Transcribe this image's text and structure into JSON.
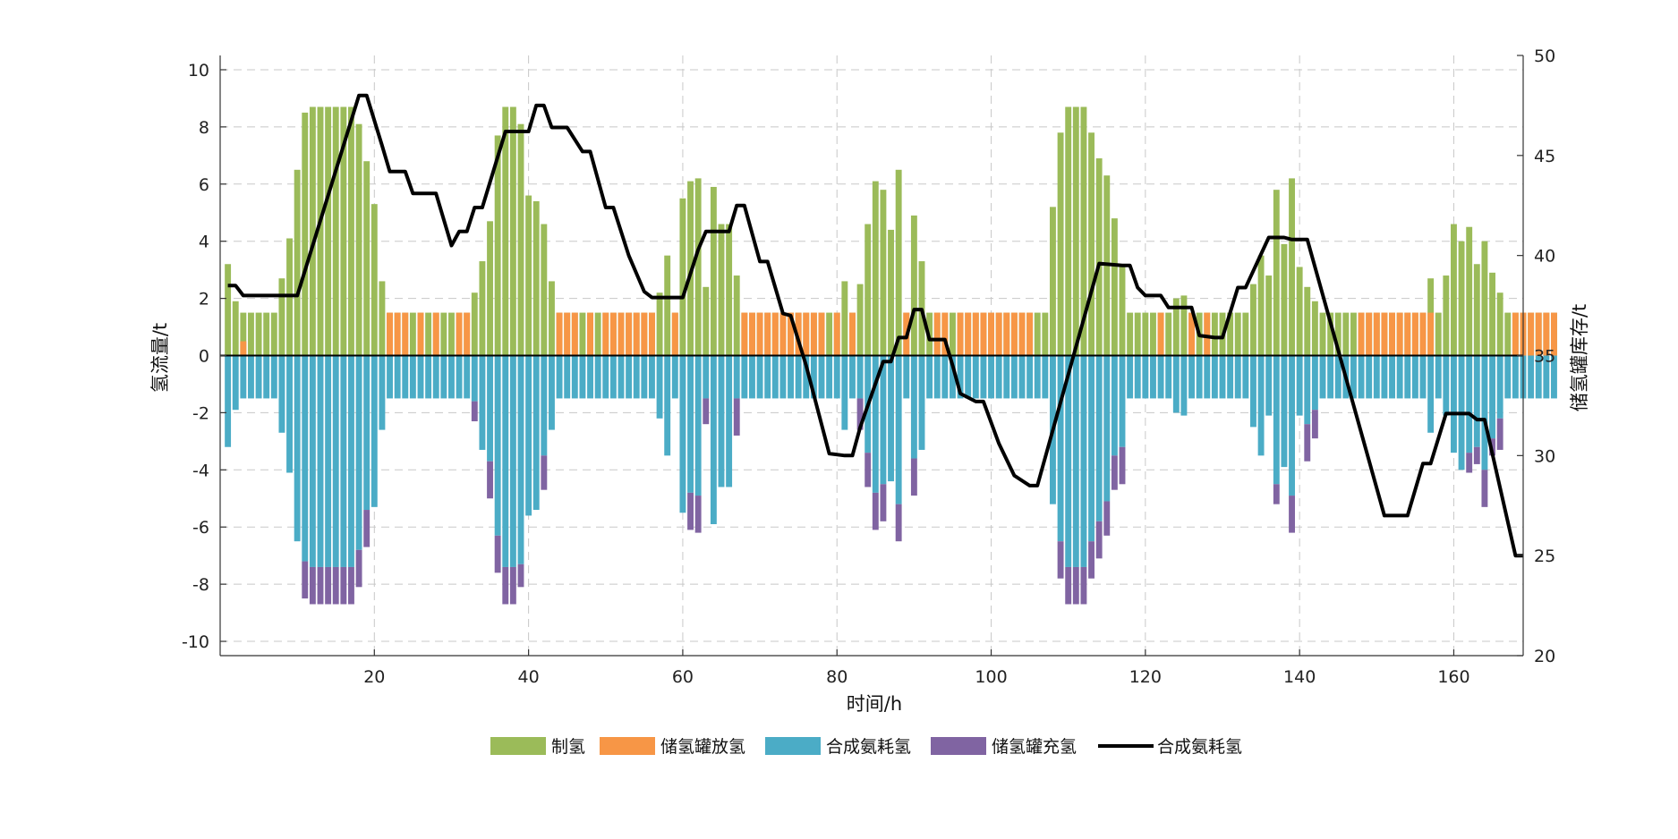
{
  "chart_data": {
    "type": "bar",
    "xlabel": "时间/h",
    "ylabel_left": "氢流量/t",
    "ylabel_right": "储氢罐库存/t",
    "xlim": [
      0,
      169
    ],
    "ylim_left": [
      -10.5,
      10.5
    ],
    "ylim_right": [
      20,
      50
    ],
    "x_ticks": [
      20,
      40,
      60,
      80,
      100,
      120,
      140,
      160
    ],
    "y_ticks_left": [
      -10,
      -8,
      -6,
      -4,
      -2,
      0,
      2,
      4,
      6,
      8,
      10
    ],
    "y_ticks_right": [
      20,
      25,
      30,
      35,
      40,
      45,
      50
    ],
    "grid": true,
    "legend_position": "bottom",
    "colors": {
      "制氢": "#9bbb59",
      "储氢罐放氢": "#f79646",
      "合成氨耗氢": "#4bacc6",
      "储氢罐充氢": "#8064a2",
      "line": "#000000"
    },
    "series": [
      {
        "name": "制氢",
        "kind": "bar",
        "values": [
          3.2,
          1.9,
          1.5,
          1.5,
          1.5,
          1.5,
          1.5,
          2.7,
          4.1,
          6.5,
          8.5,
          8.7,
          8.7,
          8.7,
          8.7,
          8.7,
          8.7,
          8.1,
          6.8,
          5.3,
          2.6,
          1.5,
          1.5,
          1.5,
          1.5,
          1.5,
          1.5,
          1.5,
          1.5,
          1.5,
          1.5,
          1.5,
          2.2,
          3.3,
          4.7,
          7.7,
          8.7,
          8.7,
          8.1,
          5.6,
          5.4,
          4.6,
          2.6,
          1.5,
          1.5,
          1.5,
          1.5,
          1.5,
          1.5,
          1.5,
          1.5,
          1.5,
          1.5,
          1.5,
          1.5,
          1.5,
          2.2,
          3.5,
          1.5,
          5.5,
          6.1,
          6.2,
          2.4,
          5.9,
          4.6,
          4.6,
          2.8,
          1.5,
          1.5,
          1.5,
          1.5,
          1.5,
          1.5,
          1.5,
          1.5,
          1.5,
          1.5,
          1.5,
          1.5,
          1.5,
          2.6,
          1.5,
          2.5,
          4.6,
          6.1,
          5.8,
          4.4,
          6.5,
          1.5,
          4.9,
          3.3,
          1.5,
          1.5,
          1.5,
          1.5,
          1.5,
          1.5,
          1.5,
          1.5,
          1.5,
          1.5,
          1.5,
          1.5,
          1.5,
          1.5,
          1.5,
          1.5,
          5.2,
          7.8,
          8.7,
          8.7,
          8.7,
          7.8,
          6.9,
          6.3,
          4.8,
          3.2,
          1.5,
          1.5,
          1.5,
          1.5,
          1.5,
          1.5,
          2.0,
          2.1,
          1.5,
          1.5,
          1.5,
          1.5,
          1.5,
          1.5,
          1.5,
          1.5,
          2.5,
          3.5,
          2.8,
          5.8,
          3.9,
          6.2,
          3.1,
          2.4,
          1.9,
          1.5,
          1.5,
          1.5,
          1.5,
          1.5,
          1.5,
          1.5,
          1.5,
          1.5,
          1.5,
          1.5,
          1.5,
          1.5,
          1.5,
          2.7,
          1.5,
          2.8,
          4.6,
          4.0,
          4.5,
          3.2,
          4.0,
          2.9,
          2.2,
          1.5,
          1.5,
          1.5,
          1.5,
          1.5,
          1.5,
          1.5
        ]
      },
      {
        "name": "储氢罐放氢",
        "kind": "bar",
        "stacked_on": "制氢",
        "values": [
          0,
          0,
          0.5,
          0,
          0,
          0,
          0,
          0,
          0,
          0,
          0,
          0,
          0,
          0,
          0,
          0,
          0,
          0,
          0,
          0,
          0,
          1.5,
          1.5,
          1.5,
          0,
          1.5,
          0,
          1.5,
          0,
          0,
          1.5,
          1.5,
          0,
          0,
          0,
          0,
          0,
          0,
          0,
          0,
          0,
          0,
          0,
          1.5,
          1.5,
          1.5,
          0,
          1.5,
          0,
          1.5,
          1.5,
          1.5,
          1.5,
          1.5,
          1.5,
          1.5,
          0,
          0,
          1.5,
          0,
          0,
          0,
          0,
          0,
          0,
          0,
          0,
          1.5,
          1.5,
          1.5,
          1.5,
          1.5,
          1.5,
          1.5,
          1.5,
          1.5,
          1.5,
          1.5,
          0,
          1.5,
          0,
          1.5,
          0,
          0,
          0,
          0,
          0,
          0,
          1.5,
          0,
          0,
          0,
          1.5,
          1.5,
          0,
          1.5,
          1.5,
          1.5,
          1.5,
          1.5,
          1.5,
          1.5,
          1.5,
          1.5,
          1.5,
          0,
          0,
          0,
          0,
          0,
          0,
          0,
          0,
          0,
          0,
          0,
          0,
          0,
          0,
          0,
          0,
          1.5,
          0,
          0,
          0,
          1.5,
          0,
          1.5,
          0,
          0,
          0,
          0,
          0,
          0,
          0,
          0,
          0,
          0,
          0,
          0,
          0,
          0,
          0,
          0,
          0,
          0,
          0,
          1.5,
          1.5,
          1.5,
          1.5,
          1.5,
          1.5,
          1.5,
          1.5,
          1.5,
          1.5,
          0,
          0,
          0,
          0,
          0,
          0,
          0,
          0,
          0,
          0,
          1.5,
          1.5,
          1.5,
          1.5,
          1.5,
          1.5,
          1.5,
          0
        ]
      },
      {
        "name": "合成氨耗氢",
        "kind": "bar",
        "values": [
          -3.2,
          -1.9,
          -1.5,
          -1.5,
          -1.5,
          -1.5,
          -1.5,
          -2.7,
          -4.1,
          -6.5,
          -7.2,
          -7.4,
          -7.4,
          -7.4,
          -7.4,
          -7.4,
          -7.4,
          -6.8,
          -5.4,
          -5.3,
          -2.6,
          -1.5,
          -1.5,
          -1.5,
          -1.5,
          -1.5,
          -1.5,
          -1.5,
          -1.5,
          -1.5,
          -1.5,
          -1.5,
          -1.6,
          -3.3,
          -3.7,
          -6.3,
          -7.4,
          -7.4,
          -7.3,
          -5.6,
          -5.4,
          -3.5,
          -2.6,
          -1.5,
          -1.5,
          -1.5,
          -1.5,
          -1.5,
          -1.5,
          -1.5,
          -1.5,
          -1.5,
          -1.5,
          -1.5,
          -1.5,
          -1.5,
          -2.2,
          -3.5,
          -1.5,
          -5.5,
          -4.8,
          -4.9,
          -1.5,
          -5.9,
          -4.6,
          -4.6,
          -1.5,
          -1.5,
          -1.5,
          -1.5,
          -1.5,
          -1.5,
          -1.5,
          -1.5,
          -1.5,
          -1.5,
          -1.5,
          -1.5,
          -1.5,
          -1.5,
          -2.6,
          -1.5,
          -1.5,
          -3.4,
          -4.8,
          -4.5,
          -4.4,
          -5.2,
          -1.5,
          -3.6,
          -3.3,
          -1.5,
          -1.5,
          -1.5,
          -1.5,
          -1.5,
          -1.5,
          -1.5,
          -1.5,
          -1.5,
          -1.5,
          -1.5,
          -1.5,
          -1.5,
          -1.5,
          -1.5,
          -1.5,
          -5.2,
          -6.5,
          -7.4,
          -7.4,
          -7.4,
          -6.5,
          -5.8,
          -5.1,
          -3.5,
          -3.2,
          -1.5,
          -1.5,
          -1.5,
          -1.5,
          -1.5,
          -1.5,
          -2.0,
          -2.1,
          -1.5,
          -1.5,
          -1.5,
          -1.5,
          -1.5,
          -1.5,
          -1.5,
          -1.5,
          -2.5,
          -3.5,
          -2.1,
          -4.5,
          -3.9,
          -4.9,
          -2.1,
          -2.4,
          -1.9,
          -1.5,
          -1.5,
          -1.5,
          -1.5,
          -1.5,
          -1.5,
          -1.5,
          -1.5,
          -1.5,
          -1.5,
          -1.5,
          -1.5,
          -1.5,
          -1.5,
          -2.7,
          -1.5,
          -2.1,
          -3.4,
          -4.0,
          -3.4,
          -3.2,
          -4.0,
          -2.9,
          -2.2,
          -1.5,
          -1.5,
          -1.5,
          -1.5,
          -1.5,
          -1.5,
          -1.5
        ]
      },
      {
        "name": "储氢罐充氢",
        "kind": "bar",
        "stacked_on": "合成氨耗氢",
        "values": [
          0,
          0,
          0,
          0,
          0,
          0,
          0,
          0,
          0,
          0,
          -1.3,
          -1.3,
          -1.3,
          -1.3,
          -1.3,
          -1.3,
          -1.3,
          -1.3,
          -1.3,
          0,
          0,
          0,
          0,
          0,
          0,
          0,
          0,
          0,
          0,
          0,
          0,
          0,
          -0.7,
          0,
          -1.3,
          -1.3,
          -1.3,
          -1.3,
          -0.8,
          0,
          0,
          -1.2,
          0,
          0,
          0,
          0,
          0,
          0,
          0,
          0,
          0,
          0,
          0,
          0,
          0,
          0,
          0,
          0,
          0,
          0,
          -1.3,
          -1.3,
          -0.9,
          0,
          0,
          0,
          -1.3,
          0,
          0,
          0,
          0,
          0,
          0,
          0,
          0,
          0,
          0,
          0,
          0,
          0,
          0,
          0,
          -1.1,
          -1.2,
          -1.3,
          -1.3,
          0,
          -1.3,
          0,
          -1.3,
          0,
          0,
          0,
          0,
          0,
          0,
          0,
          0,
          0,
          0,
          0,
          0,
          0,
          0,
          0,
          0,
          0,
          0,
          -1.3,
          -1.3,
          -1.3,
          -1.3,
          -1.3,
          -1.3,
          -1.2,
          -1.2,
          -1.3,
          0,
          0,
          0,
          0,
          0,
          0,
          0,
          0,
          0,
          0,
          0,
          0,
          0,
          0,
          0,
          0,
          0,
          0,
          0,
          -0.7,
          0,
          -1.3,
          0,
          -1.3,
          -1.0,
          0,
          0,
          0,
          0,
          0,
          0,
          0,
          0,
          0,
          0,
          0,
          0,
          0,
          0,
          0,
          0,
          0,
          0,
          0,
          -0.7,
          -0.6,
          -1.3,
          -0.6,
          -1.1,
          0,
          0,
          0,
          0,
          0,
          0,
          0,
          0,
          0,
          0,
          0,
          0
        ]
      },
      {
        "name": "合成氨耗氢",
        "kind": "line",
        "axis": "right",
        "points": [
          [
            1,
            38.5
          ],
          [
            2,
            38.5
          ],
          [
            3,
            38.0
          ],
          [
            8,
            38.0
          ],
          [
            10,
            38.0
          ],
          [
            18,
            48.0
          ],
          [
            19,
            48.0
          ],
          [
            21,
            45.5
          ],
          [
            22,
            44.2
          ],
          [
            24,
            44.2
          ],
          [
            25,
            43.1
          ],
          [
            27,
            43.1
          ],
          [
            28,
            43.1
          ],
          [
            30,
            40.5
          ],
          [
            31,
            41.2
          ],
          [
            32,
            41.2
          ],
          [
            33,
            42.4
          ],
          [
            34,
            42.4
          ],
          [
            37,
            46.2
          ],
          [
            40,
            46.2
          ],
          [
            41,
            47.5
          ],
          [
            42,
            47.5
          ],
          [
            43,
            46.4
          ],
          [
            45,
            46.4
          ],
          [
            47,
            45.2
          ],
          [
            48,
            45.2
          ],
          [
            50,
            42.4
          ],
          [
            51,
            42.4
          ],
          [
            53,
            40.0
          ],
          [
            55,
            38.2
          ],
          [
            56,
            37.9
          ],
          [
            60,
            37.9
          ],
          [
            62,
            40.3
          ],
          [
            63,
            41.2
          ],
          [
            66,
            41.2
          ],
          [
            67,
            42.5
          ],
          [
            68,
            42.5
          ],
          [
            70,
            39.7
          ],
          [
            71,
            39.7
          ],
          [
            73,
            37.1
          ],
          [
            74,
            37.0
          ],
          [
            76,
            34.5
          ],
          [
            79,
            30.1
          ],
          [
            81,
            30.0
          ],
          [
            82,
            30.0
          ],
          [
            83,
            31.4
          ],
          [
            85,
            33.6
          ],
          [
            86,
            34.7
          ],
          [
            87,
            34.7
          ],
          [
            88,
            35.9
          ],
          [
            89,
            35.9
          ],
          [
            90,
            37.3
          ],
          [
            91,
            37.3
          ],
          [
            92,
            35.8
          ],
          [
            94,
            35.8
          ],
          [
            95,
            34.5
          ],
          [
            96,
            33.1
          ],
          [
            98,
            32.7
          ],
          [
            99,
            32.7
          ],
          [
            101,
            30.6
          ],
          [
            103,
            29.0
          ],
          [
            105,
            28.5
          ],
          [
            106,
            28.5
          ],
          [
            114,
            39.6
          ],
          [
            117,
            39.5
          ],
          [
            118,
            39.5
          ],
          [
            119,
            38.4
          ],
          [
            120,
            38.0
          ],
          [
            122,
            38.0
          ],
          [
            123,
            37.4
          ],
          [
            126,
            37.4
          ],
          [
            127,
            36.0
          ],
          [
            129,
            35.9
          ],
          [
            130,
            35.9
          ],
          [
            132,
            38.4
          ],
          [
            133,
            38.4
          ],
          [
            136,
            40.9
          ],
          [
            138,
            40.9
          ],
          [
            139,
            40.8
          ],
          [
            141,
            40.8
          ],
          [
            151,
            27.0
          ],
          [
            154,
            27.0
          ],
          [
            156,
            29.6
          ],
          [
            157,
            29.6
          ],
          [
            159,
            32.1
          ],
          [
            162,
            32.1
          ],
          [
            163,
            31.8
          ],
          [
            164,
            31.8
          ],
          [
            168,
            25.0
          ],
          [
            169,
            25.0
          ]
        ]
      }
    ],
    "legend": [
      "制氢",
      "储氢罐放氢",
      "合成氨耗氢",
      "储氢罐充氢",
      "合成氨耗氢"
    ]
  }
}
